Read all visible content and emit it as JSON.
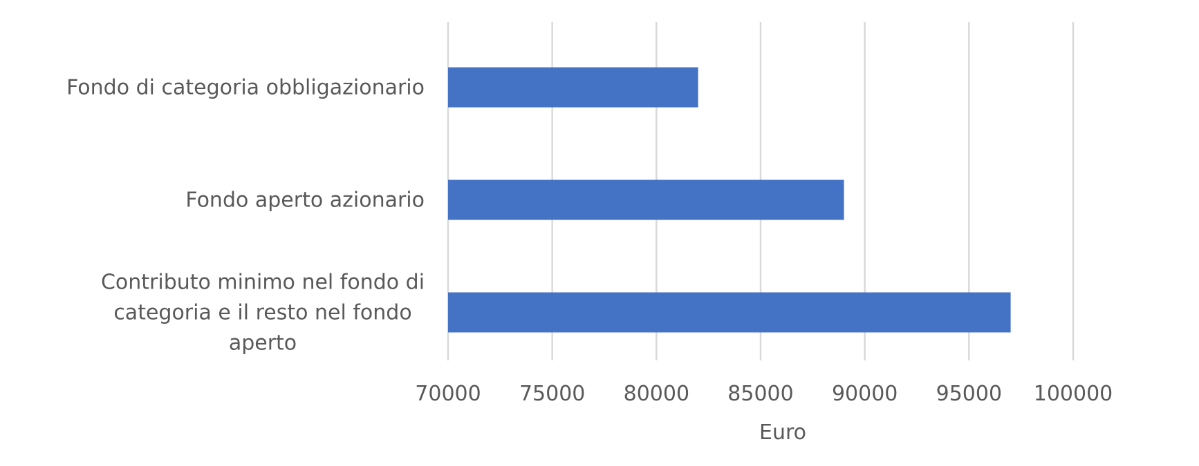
{
  "chart_data": {
    "type": "bar",
    "orientation": "horizontal",
    "categories": [
      "Fondo di categoria obbligazionario",
      "Fondo aperto azionario",
      "Contributo minimo nel fondo di categoria e il resto nel fondo aperto"
    ],
    "category_label_lines": [
      [
        "Fondo di categoria obbligazionario"
      ],
      [
        "Fondo aperto azionario"
      ],
      [
        "Contributo minimo nel fondo di",
        "categoria e il resto nel fondo",
        "aperto"
      ]
    ],
    "values": [
      82000,
      89000,
      97000
    ],
    "xlabel": "Euro",
    "ylabel": "",
    "title": "",
    "xlim": [
      70000,
      100000
    ],
    "xticks": [
      70000,
      75000,
      80000,
      85000,
      90000,
      95000,
      100000
    ],
    "tick_labels": [
      "70000",
      "75000",
      "80000",
      "85000",
      "90000",
      "95000",
      "100000"
    ],
    "grid": "vertical",
    "legend": "none",
    "bar_color": "#4472C4"
  }
}
